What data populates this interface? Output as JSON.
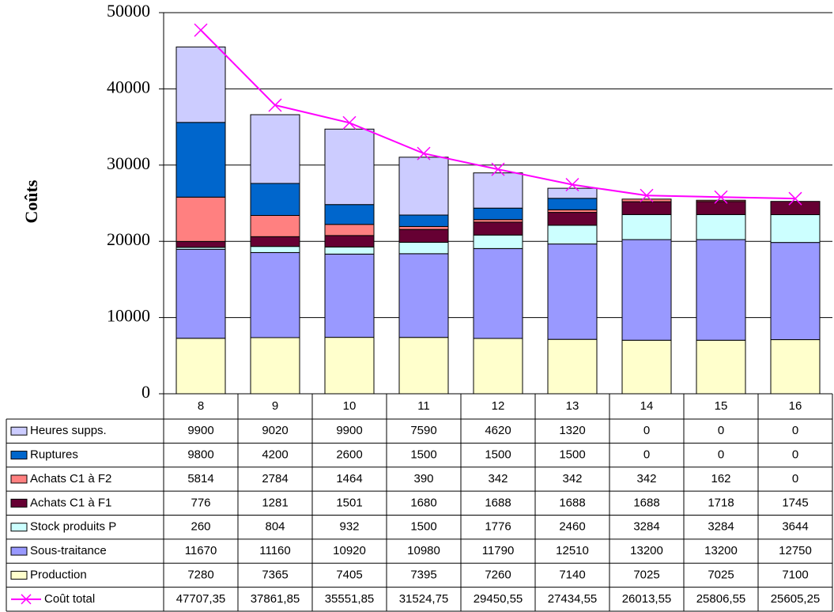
{
  "chart_data": {
    "type": "bar",
    "stacked": true,
    "ylabel": "Coûts",
    "categories": [
      "8",
      "9",
      "10",
      "11",
      "12",
      "13",
      "14",
      "15",
      "16"
    ],
    "ylim": [
      0,
      50000
    ],
    "yticks": [
      0,
      10000,
      20000,
      30000,
      40000,
      50000
    ],
    "grid": true,
    "series": [
      {
        "name": "Production",
        "color": "#ffffcc",
        "values": [
          7280,
          7365,
          7405,
          7395,
          7260,
          7140,
          7025,
          7025,
          7100
        ]
      },
      {
        "name": "Sous-traitance",
        "color": "#9999ff",
        "values": [
          11670,
          11160,
          10920,
          10980,
          11790,
          12510,
          13200,
          13200,
          12750
        ]
      },
      {
        "name": "Stock produits P",
        "color": "#ccffff",
        "values": [
          260,
          804,
          932,
          1500,
          1776,
          2460,
          3284,
          3284,
          3644
        ]
      },
      {
        "name": "Achats C1 à F1",
        "color": "#660033",
        "values": [
          776,
          1281,
          1501,
          1680,
          1688,
          1688,
          1688,
          1718,
          1745
        ]
      },
      {
        "name": "Achats C1 à F2",
        "color": "#ff8080",
        "values": [
          5814,
          2784,
          1464,
          390,
          342,
          342,
          342,
          162,
          0
        ]
      },
      {
        "name": "Ruptures",
        "color": "#0066cc",
        "values": [
          9800,
          4200,
          2600,
          1500,
          1500,
          1500,
          0,
          0,
          0
        ]
      },
      {
        "name": "Heures supps.",
        "color": "#ccccff",
        "values": [
          9900,
          9020,
          9900,
          7590,
          4620,
          1320,
          0,
          0,
          0
        ]
      },
      {
        "name": "Coût total",
        "color": "#ff00ff",
        "type": "line",
        "values": [
          47707.35,
          37861.85,
          35551.85,
          31524.75,
          29450.55,
          27434.55,
          26013.55,
          25806.55,
          25605.25
        ],
        "value_labels": [
          "47707,35",
          "37861,85",
          "35551,85",
          "31524,75",
          "29450,55",
          "27434,55",
          "26013,55",
          "25806,55",
          "25605,25"
        ]
      }
    ]
  }
}
